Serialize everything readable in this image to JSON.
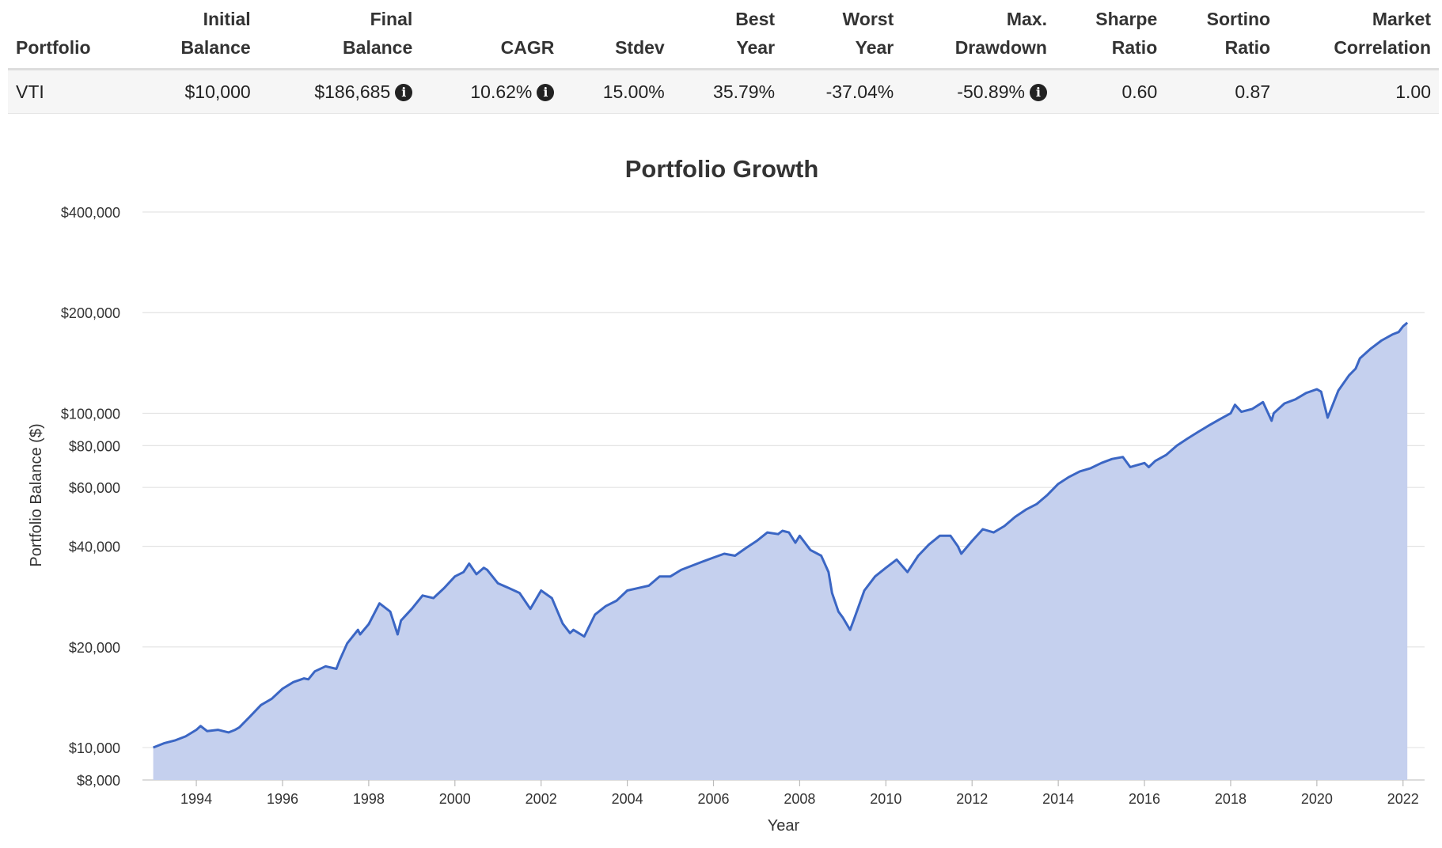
{
  "summary": {
    "headers": [
      {
        "line1": "",
        "line2": "Portfolio"
      },
      {
        "line1": "Initial",
        "line2": "Balance"
      },
      {
        "line1": "Final",
        "line2": "Balance"
      },
      {
        "line1": "",
        "line2": "CAGR"
      },
      {
        "line1": "",
        "line2": "Stdev"
      },
      {
        "line1": "Best",
        "line2": "Year"
      },
      {
        "line1": "Worst",
        "line2": "Year"
      },
      {
        "line1": "Max.",
        "line2": "Drawdown"
      },
      {
        "line1": "Sharpe",
        "line2": "Ratio"
      },
      {
        "line1": "Sortino",
        "line2": "Ratio"
      },
      {
        "line1": "Market",
        "line2": "Correlation"
      }
    ],
    "row": {
      "portfolio": "VTI",
      "initial_balance": "$10,000",
      "final_balance": "$186,685",
      "cagr": "10.62%",
      "stdev": "15.00%",
      "best_year": "35.79%",
      "worst_year": "-37.04%",
      "max_drawdown": "-50.89%",
      "sharpe_ratio": "0.60",
      "sortino_ratio": "0.87",
      "market_correlation": "1.00"
    },
    "info_icon": "info-icon"
  },
  "chart_data": {
    "type": "area",
    "title": "Portfolio Growth",
    "xlabel": "Year",
    "ylabel": "Portfolio Balance ($)",
    "y_scale": "log",
    "ylim": [
      8000,
      400000
    ],
    "xlim": [
      1992.75,
      2022.5
    ],
    "y_ticks": [
      8000,
      10000,
      20000,
      40000,
      60000,
      80000,
      100000,
      200000,
      400000
    ],
    "y_tick_labels": [
      "$8,000",
      "$10,000",
      "$20,000",
      "$40,000",
      "$60,000",
      "$80,000",
      "$100,000",
      "$200,000",
      "$400,000"
    ],
    "x_ticks": [
      1994,
      1996,
      1998,
      2000,
      2002,
      2004,
      2006,
      2008,
      2010,
      2012,
      2014,
      2016,
      2018,
      2020,
      2022
    ],
    "x_tick_labels": [
      "1994",
      "1996",
      "1998",
      "2000",
      "2002",
      "2004",
      "2006",
      "2008",
      "2010",
      "2012",
      "2014",
      "2016",
      "2018",
      "2020",
      "2022"
    ],
    "line_color": "#3b66c4",
    "fill_color": "#c5d0ee",
    "grid": true,
    "series": [
      {
        "x": [
          1993.0,
          1993.25,
          1993.5,
          1993.75,
          1994.0,
          1994.1,
          1994.25,
          1994.5,
          1994.75,
          1994.9,
          1995.0,
          1995.25,
          1995.5,
          1995.75,
          1996.0,
          1996.25,
          1996.5,
          1996.6,
          1996.75,
          1997.0,
          1997.25,
          1997.33,
          1997.5,
          1997.75,
          1997.8,
          1998.0,
          1998.25,
          1998.5,
          1998.67,
          1998.75,
          1999.0,
          1999.25,
          1999.5,
          1999.75,
          2000.0,
          2000.2,
          2000.33,
          2000.5,
          2000.67,
          2000.75,
          2001.0,
          2001.25,
          2001.5,
          2001.75,
          2002.0,
          2002.25,
          2002.5,
          2002.67,
          2002.75,
          2003.0,
          2003.25,
          2003.5,
          2003.75,
          2004.0,
          2004.25,
          2004.5,
          2004.75,
          2005.0,
          2005.25,
          2005.5,
          2005.75,
          2006.0,
          2006.25,
          2006.5,
          2006.75,
          2007.0,
          2007.25,
          2007.5,
          2007.6,
          2007.75,
          2007.9,
          2008.0,
          2008.25,
          2008.5,
          2008.67,
          2008.75,
          2008.9,
          2009.0,
          2009.17,
          2009.25,
          2009.5,
          2009.75,
          2010.0,
          2010.25,
          2010.5,
          2010.75,
          2011.0,
          2011.25,
          2011.5,
          2011.67,
          2011.75,
          2012.0,
          2012.25,
          2012.5,
          2012.75,
          2013.0,
          2013.25,
          2013.5,
          2013.75,
          2014.0,
          2014.25,
          2014.5,
          2014.75,
          2015.0,
          2015.25,
          2015.5,
          2015.67,
          2015.75,
          2016.0,
          2016.1,
          2016.25,
          2016.5,
          2016.75,
          2017.0,
          2017.25,
          2017.5,
          2017.75,
          2018.0,
          2018.1,
          2018.25,
          2018.5,
          2018.75,
          2018.95,
          2019.0,
          2019.25,
          2019.5,
          2019.75,
          2020.0,
          2020.1,
          2020.25,
          2020.5,
          2020.75,
          2020.9,
          2021.0,
          2021.25,
          2021.5,
          2021.75,
          2021.9,
          2022.0,
          2022.1
        ],
        "values": [
          10000,
          10300,
          10500,
          10800,
          11300,
          11600,
          11200,
          11300,
          11100,
          11300,
          11500,
          12400,
          13400,
          14000,
          15000,
          15700,
          16100,
          16000,
          16900,
          17500,
          17200,
          18300,
          20500,
          22500,
          21800,
          23400,
          27000,
          25500,
          21800,
          24000,
          26000,
          28500,
          28000,
          30000,
          32500,
          33500,
          35500,
          33000,
          34500,
          34000,
          31000,
          30000,
          29000,
          26000,
          29500,
          28000,
          23500,
          22000,
          22500,
          21500,
          25000,
          26500,
          27500,
          29500,
          30000,
          30500,
          32500,
          32500,
          34000,
          35000,
          36000,
          37000,
          38000,
          37500,
          39500,
          41500,
          44000,
          43500,
          44500,
          44000,
          41000,
          43000,
          39000,
          37500,
          33500,
          29000,
          25500,
          24500,
          22500,
          24000,
          29500,
          32500,
          34500,
          36500,
          33500,
          37500,
          40500,
          43000,
          43000,
          40000,
          38000,
          41500,
          45000,
          44000,
          46000,
          49000,
          51500,
          53500,
          57000,
          61500,
          64500,
          67000,
          68500,
          71000,
          73000,
          74000,
          69000,
          69500,
          71000,
          69000,
          72000,
          75000,
          80000,
          84000,
          88000,
          92000,
          96000,
          100000,
          106000,
          101000,
          103000,
          108000,
          95000,
          100000,
          107000,
          110000,
          115000,
          118000,
          116000,
          97000,
          117000,
          130000,
          136000,
          146000,
          156000,
          165000,
          172000,
          175000,
          182000,
          186685
        ]
      }
    ]
  }
}
